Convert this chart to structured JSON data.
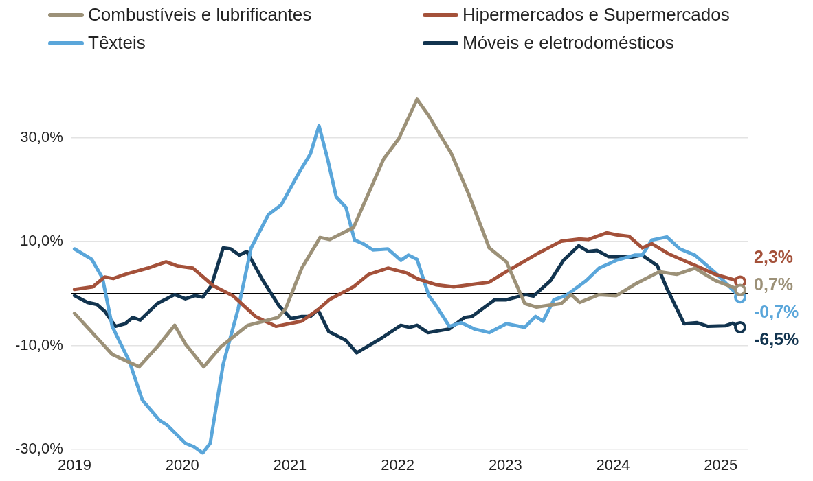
{
  "chart_data": {
    "type": "line",
    "legend": "top",
    "grid": "y",
    "marker": "none",
    "line_style": "solid",
    "xlim": [
      2018.97,
      2025.25
    ],
    "xticks": [
      2019,
      2020,
      2021,
      2022,
      2023,
      2024,
      2025
    ],
    "ylim": [
      -31,
      40
    ],
    "yticks": [
      {
        "value": -30,
        "label": "-30,0%"
      },
      {
        "value": -10,
        "label": "-10,0%"
      },
      {
        "value": 10,
        "label": "10,0%"
      },
      {
        "value": 30,
        "label": "30,0%"
      }
    ],
    "ref_lines": [
      {
        "axis": "y",
        "value": 0,
        "label": null,
        "color": "#000000",
        "line_style": "solid"
      }
    ],
    "series": [
      {
        "name": "Combustíveis e lubrificantes",
        "color": "#9c9178",
        "x": [
          2019.0,
          2019.35,
          2019.6,
          2019.77,
          2019.93,
          2020.03,
          2020.2,
          2020.36,
          2020.61,
          2020.89,
          2020.96,
          2021.11,
          2021.28,
          2021.37,
          2021.59,
          2021.87,
          2022.01,
          2022.18,
          2022.29,
          2022.5,
          2022.66,
          2022.85,
          2023.01,
          2023.18,
          2023.29,
          2023.52,
          2023.61,
          2023.69,
          2023.87,
          2024.03,
          2024.22,
          2024.43,
          2024.59,
          2024.76,
          2024.95,
          2025.18
        ],
        "values": [
          -3.8,
          -11.7,
          -14.1,
          -10.2,
          -6.1,
          -9.7,
          -14.1,
          -10.2,
          -6.1,
          -4.6,
          -2.9,
          4.9,
          10.8,
          10.4,
          12.7,
          25.9,
          29.8,
          37.4,
          34.2,
          26.9,
          19.1,
          8.8,
          6.1,
          -1.9,
          -2.6,
          -1.9,
          -0.2,
          -1.7,
          -0.2,
          -0.4,
          2.0,
          4.2,
          3.7,
          4.9,
          2.5,
          0.7
        ],
        "value_labels": [
          null,
          null,
          null,
          null,
          null,
          null,
          null,
          null,
          null,
          null,
          null,
          null,
          null,
          null,
          null,
          null,
          null,
          null,
          null,
          null,
          null,
          null,
          null,
          null,
          null,
          null,
          null,
          null,
          null,
          null,
          null,
          null,
          null,
          null,
          null,
          "0,7%"
        ]
      },
      {
        "name": "Hipermercados e Supermercados",
        "color": "#a4513a",
        "x": [
          2019.0,
          2019.17,
          2019.28,
          2019.36,
          2019.47,
          2019.68,
          2019.85,
          2019.96,
          2020.1,
          2020.29,
          2020.47,
          2020.68,
          2020.87,
          2021.11,
          2021.26,
          2021.37,
          2021.59,
          2021.73,
          2021.91,
          2022.08,
          2022.19,
          2022.36,
          2022.52,
          2022.85,
          2022.99,
          2023.15,
          2023.29,
          2023.52,
          2023.68,
          2023.77,
          2023.94,
          2024.03,
          2024.15,
          2024.27,
          2024.36,
          2024.52,
          2024.71,
          2024.95,
          2025.18
        ],
        "values": [
          0.8,
          1.3,
          3.2,
          2.9,
          3.7,
          4.9,
          6.1,
          5.3,
          4.9,
          1.5,
          -0.4,
          -4.4,
          -6.3,
          -5.3,
          -3.1,
          -1.1,
          1.3,
          3.7,
          4.9,
          4.0,
          2.8,
          1.7,
          1.3,
          2.2,
          4.0,
          5.9,
          7.6,
          10.1,
          10.5,
          10.4,
          11.7,
          11.3,
          11.0,
          8.8,
          9.6,
          7.6,
          5.9,
          3.7,
          2.3
        ],
        "value_labels": [
          null,
          null,
          null,
          null,
          null,
          null,
          null,
          null,
          null,
          null,
          null,
          null,
          null,
          null,
          null,
          null,
          null,
          null,
          null,
          null,
          null,
          null,
          null,
          null,
          null,
          null,
          null,
          null,
          null,
          null,
          null,
          null,
          null,
          null,
          null,
          null,
          null,
          null,
          "2,3%"
        ]
      },
      {
        "name": "Têxteis",
        "color": "#5aa6da",
        "x": [
          2019.0,
          2019.16,
          2019.26,
          2019.35,
          2019.51,
          2019.63,
          2019.79,
          2019.86,
          2020.03,
          2020.11,
          2020.19,
          2020.26,
          2020.38,
          2020.52,
          2020.64,
          2020.8,
          2020.92,
          2021.09,
          2021.19,
          2021.27,
          2021.35,
          2021.43,
          2021.52,
          2021.6,
          2021.68,
          2021.77,
          2021.91,
          2022.03,
          2022.1,
          2022.18,
          2022.29,
          2022.36,
          2022.48,
          2022.59,
          2022.71,
          2022.85,
          2023.01,
          2023.18,
          2023.28,
          2023.35,
          2023.45,
          2023.56,
          2023.75,
          2023.87,
          2024.03,
          2024.2,
          2024.27,
          2024.36,
          2024.5,
          2024.62,
          2024.76,
          2024.95,
          2025.18
        ],
        "values": [
          8.6,
          6.6,
          3.0,
          -6.3,
          -13.1,
          -20.5,
          -24.4,
          -25.3,
          -28.8,
          -29.5,
          -30.7,
          -28.8,
          -13.6,
          -2.9,
          8.8,
          15.2,
          17.1,
          23.5,
          26.9,
          32.3,
          25.9,
          18.6,
          16.6,
          10.3,
          9.6,
          8.4,
          8.6,
          6.4,
          7.4,
          6.6,
          -0.4,
          -2.4,
          -6.3,
          -5.6,
          -6.8,
          -7.5,
          -5.8,
          -6.5,
          -4.4,
          -5.3,
          -1.2,
          -0.4,
          2.5,
          4.9,
          6.4,
          7.4,
          7.4,
          10.3,
          10.9,
          8.6,
          7.4,
          4.0,
          -0.7
        ],
        "value_labels": [
          null,
          null,
          null,
          null,
          null,
          null,
          null,
          null,
          null,
          null,
          null,
          null,
          null,
          null,
          null,
          null,
          null,
          null,
          null,
          null,
          null,
          null,
          null,
          null,
          null,
          null,
          null,
          null,
          null,
          null,
          null,
          null,
          null,
          null,
          null,
          null,
          null,
          null,
          null,
          null,
          null,
          null,
          null,
          null,
          null,
          null,
          null,
          null,
          null,
          null,
          null,
          null,
          "-0,7%"
        ]
      },
      {
        "name": "Móveis e eletrodomésticos",
        "color": "#12344f",
        "x": [
          2019.0,
          2019.12,
          2019.21,
          2019.28,
          2019.38,
          2019.47,
          2019.54,
          2019.61,
          2019.77,
          2019.93,
          2020.03,
          2020.12,
          2020.19,
          2020.27,
          2020.38,
          2020.45,
          2020.53,
          2020.6,
          2020.75,
          2020.9,
          2021.01,
          2021.11,
          2021.19,
          2021.26,
          2021.36,
          2021.52,
          2021.62,
          2021.84,
          2022.03,
          2022.11,
          2022.18,
          2022.28,
          2022.48,
          2022.62,
          2022.69,
          2022.9,
          2023.01,
          2023.19,
          2023.26,
          2023.42,
          2023.54,
          2023.68,
          2023.77,
          2023.85,
          2023.96,
          2024.17,
          2024.27,
          2024.41,
          2024.5,
          2024.66,
          2024.78,
          2024.88,
          2025.04,
          2025.11,
          2025.18
        ],
        "values": [
          -0.4,
          -1.7,
          -2.1,
          -3.4,
          -6.3,
          -5.8,
          -4.6,
          -5.1,
          -1.9,
          -0.2,
          -1.0,
          -0.4,
          -0.7,
          1.5,
          8.8,
          8.6,
          7.4,
          8.1,
          2.5,
          -2.4,
          -4.8,
          -4.4,
          -4.4,
          -3.1,
          -7.3,
          -9.0,
          -11.4,
          -8.7,
          -6.1,
          -6.5,
          -6.1,
          -7.5,
          -6.8,
          -4.6,
          -4.4,
          -1.2,
          -1.2,
          -0.2,
          -0.5,
          2.5,
          6.4,
          9.2,
          8.1,
          8.3,
          7.1,
          7.0,
          7.4,
          5.4,
          1.0,
          -5.8,
          -5.6,
          -6.3,
          -6.2,
          -5.7,
          -6.5
        ],
        "value_labels": [
          null,
          null,
          null,
          null,
          null,
          null,
          null,
          null,
          null,
          null,
          null,
          null,
          null,
          null,
          null,
          null,
          null,
          null,
          null,
          null,
          null,
          null,
          null,
          null,
          null,
          null,
          null,
          null,
          null,
          null,
          null,
          null,
          null,
          null,
          null,
          null,
          null,
          null,
          null,
          null,
          null,
          null,
          null,
          null,
          null,
          null,
          null,
          null,
          null,
          null,
          null,
          null,
          null,
          null,
          "-6,5%"
        ]
      }
    ]
  }
}
